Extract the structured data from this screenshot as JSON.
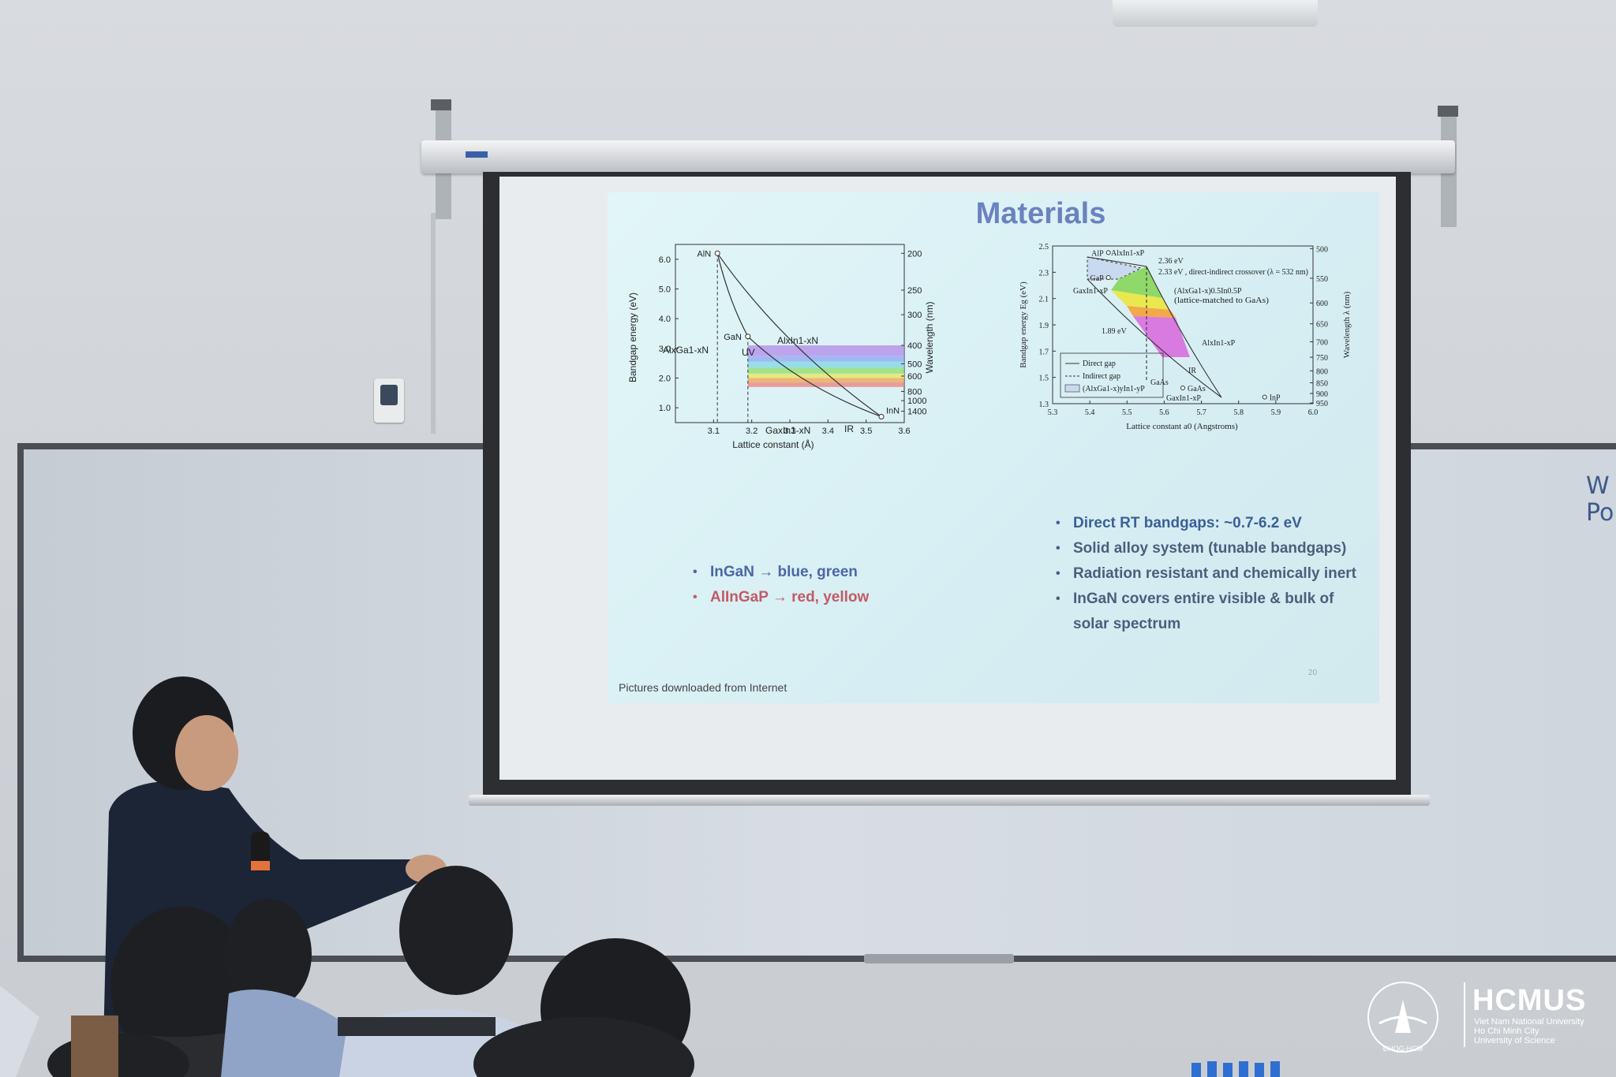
{
  "slide": {
    "title": "Materials",
    "footer": "Pictures downloaded from Internet",
    "page_number": "20",
    "left_bullets": [
      {
        "text": "InGaN → blue, green"
      },
      {
        "text": "AlInGaP → red, yellow"
      }
    ],
    "right_bullets": [
      {
        "text": "Direct RT bandgaps: ~0.7-6.2 eV"
      },
      {
        "text": "Solid alloy system (tunable bandgaps)"
      },
      {
        "text": "Radiation resistant and chemically inert"
      },
      {
        "text": "InGaN covers entire visible & bulk of solar spectrum"
      }
    ]
  },
  "chart_data": [
    {
      "type": "line",
      "title": "",
      "xlabel": "Lattice constant (Å)",
      "ylabel": "Bandgap energy (eV)",
      "y2label": "Wavelength (nm)",
      "xlim": [
        3.0,
        3.6
      ],
      "ylim": [
        0.5,
        6.5
      ],
      "xticks": [
        "3.1",
        "3.2",
        "3.3",
        "3.4",
        "3.5",
        "3.6"
      ],
      "yticks": [
        "1.0",
        "2.0",
        "3.0",
        "4.0",
        "5.0",
        "6.0"
      ],
      "y2ticks": [
        "200",
        "250",
        "300",
        "400",
        "500",
        "600",
        "800",
        "1000",
        "1400"
      ],
      "points": [
        {
          "label": "AlN",
          "x": 3.11,
          "y": 6.2
        },
        {
          "label": "GaN",
          "x": 3.19,
          "y": 3.4
        },
        {
          "label": "InN",
          "x": 3.54,
          "y": 0.7
        }
      ],
      "annotations": [
        "AlxGa1-xN",
        "AlxIn1-xN",
        "GaxIn1-xN",
        "UV",
        "IR"
      ]
    },
    {
      "type": "line",
      "title": "",
      "xlabel": "Lattice constant a0 (Angstroms)",
      "ylabel": "Bandgap energy Eg (eV)",
      "y2label": "Wavelength λ (nm)",
      "xlim": [
        5.3,
        6.0
      ],
      "ylim": [
        1.3,
        2.5
      ],
      "xticks": [
        "5.3",
        "5.4",
        "5.5",
        "5.6",
        "5.7",
        "5.8",
        "5.9",
        "6.0"
      ],
      "yticks": [
        "1.3",
        "1.5",
        "1.7",
        "1.9",
        "2.1",
        "2.3",
        "2.5"
      ],
      "y2ticks": [
        "500",
        "550",
        "600",
        "650",
        "700",
        "750",
        "800",
        "850",
        "900",
        "950"
      ],
      "points": [
        {
          "label": "AlP",
          "x": 5.45,
          "y": 2.45
        },
        {
          "label": "GaP",
          "x": 5.45,
          "y": 2.26
        },
        {
          "label": "InP",
          "x": 5.87,
          "y": 1.35
        },
        {
          "label": "GaAs",
          "x": 5.65,
          "y": 1.42
        }
      ],
      "annotations": [
        "AlxIn1-xP",
        "2.36 eV",
        "2.33 eV , direct-indirect crossover (λ = 532 nm)",
        "GaxIn1-xP",
        "(AlxGa1-x)0.5In0.5P",
        "(lattice-matched to GaAs)",
        "1.89 eV",
        "AlxIn1-xP",
        "IR",
        "GaAs",
        "GaxIn1-xP",
        "InP"
      ],
      "legend": [
        "Direct gap",
        "Indirect gap",
        "(AlxGa1-x)yIn1-yP"
      ]
    }
  ],
  "logo": {
    "name": "HCMUS",
    "lines": [
      "Viet Nam National University",
      "Ho Chi Minh City",
      "University of Science"
    ],
    "seal_text": "TRƯỜNG ĐẠI HỌC KHOA HỌC TỰ NHIÊN · ĐHQG-HCM · KHTN"
  },
  "whiteboard_text": [
    "W",
    "Po"
  ]
}
